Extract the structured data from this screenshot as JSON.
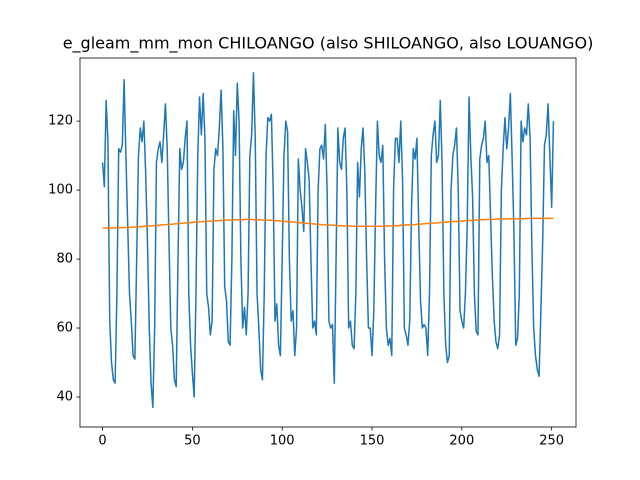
{
  "chart_data": {
    "type": "line",
    "title": "e_gleam_mm_mon CHILOANGO (also SHILOANGO, also LOUANGO)",
    "x": [
      0,
      1,
      2,
      3,
      4,
      5,
      6,
      7,
      8,
      9,
      10,
      11,
      12,
      13,
      14,
      15,
      16,
      17,
      18,
      19,
      20,
      21,
      22,
      23,
      24,
      25,
      26,
      27,
      28,
      29,
      30,
      31,
      32,
      33,
      34,
      35,
      36,
      37,
      38,
      39,
      40,
      41,
      42,
      43,
      44,
      45,
      46,
      47,
      48,
      49,
      50,
      51,
      52,
      53,
      54,
      55,
      56,
      57,
      58,
      59,
      60,
      61,
      62,
      63,
      64,
      65,
      66,
      67,
      68,
      69,
      70,
      71,
      72,
      73,
      74,
      75,
      76,
      77,
      78,
      79,
      80,
      81,
      82,
      83,
      84,
      85,
      86,
      87,
      88,
      89,
      90,
      91,
      92,
      93,
      94,
      95,
      96,
      97,
      98,
      99,
      100,
      101,
      102,
      103,
      104,
      105,
      106,
      107,
      108,
      109,
      110,
      111,
      112,
      113,
      114,
      115,
      116,
      117,
      118,
      119,
      120,
      121,
      122,
      123,
      124,
      125,
      126,
      127,
      128,
      129,
      130,
      131,
      132,
      133,
      134,
      135,
      136,
      137,
      138,
      139,
      140,
      141,
      142,
      143,
      144,
      145,
      146,
      147,
      148,
      149,
      150,
      151,
      152,
      153,
      154,
      155,
      156,
      157,
      158,
      159,
      160,
      161,
      162,
      163,
      164,
      165,
      166,
      167,
      168,
      169,
      170,
      171,
      172,
      173,
      174,
      175,
      176,
      177,
      178,
      179,
      180,
      181,
      182,
      183,
      184,
      185,
      186,
      187,
      188,
      189,
      190,
      191,
      192,
      193,
      194,
      195,
      196,
      197,
      198,
      199,
      200,
      201,
      202,
      203,
      204,
      205,
      206,
      207,
      208,
      209,
      210,
      211,
      212,
      213,
      214,
      215,
      216,
      217,
      218,
      219,
      220,
      221,
      222,
      223,
      224,
      225,
      226,
      227,
      228,
      229,
      230,
      231,
      232,
      233,
      234,
      235,
      236,
      237,
      238,
      239,
      240,
      241,
      242,
      243,
      244,
      245,
      246,
      247,
      248,
      249,
      250,
      251
    ],
    "series": [
      {
        "color": "#1f77b4",
        "values": [
          108,
          101,
          126,
          114,
          62,
          50,
          45,
          44,
          70,
          112,
          111,
          113,
          132,
          110,
          90,
          70,
          62,
          52,
          51,
          80,
          110,
          118,
          114,
          120,
          105,
          85,
          60,
          44,
          37,
          60,
          108,
          112,
          114,
          108,
          116,
          125,
          112,
          85,
          60,
          55,
          45,
          43,
          80,
          112,
          106,
          108,
          115,
          120,
          70,
          55,
          47,
          40,
          70,
          110,
          127,
          116,
          128,
          115,
          70,
          66,
          58,
          62,
          106,
          112,
          110,
          118,
          129,
          112,
          72,
          68,
          56,
          55,
          80,
          123,
          110,
          131,
          120,
          80,
          60,
          66,
          58,
          70,
          110,
          116,
          134,
          115,
          70,
          60,
          48,
          45,
          70,
          110,
          121,
          120,
          122,
          100,
          62,
          67,
          55,
          52,
          80,
          110,
          120,
          117,
          80,
          62,
          65,
          52,
          60,
          109,
          100,
          95,
          88,
          112,
          108,
          103,
          80,
          60,
          62,
          58,
          100,
          112,
          113,
          109,
          119,
          100,
          62,
          60,
          61,
          44,
          80,
          118,
          108,
          106,
          115,
          118,
          100,
          60,
          62,
          55,
          54,
          70,
          108,
          98,
          112,
          118,
          105,
          80,
          60,
          60,
          52,
          65,
          95,
          120,
          110,
          108,
          113,
          80,
          60,
          55,
          57,
          52,
          100,
          115,
          115,
          108,
          120,
          103,
          60,
          58,
          55,
          62,
          95,
          112,
          109,
          115,
          90,
          68,
          60,
          61,
          60,
          52,
          70,
          110,
          116,
          120,
          108,
          110,
          126,
          108,
          70,
          55,
          50,
          52,
          100,
          110,
          113,
          118,
          100,
          65,
          62,
          60,
          70,
          90,
          127,
          110,
          98,
          70,
          59,
          58,
          109,
          113,
          115,
          120,
          108,
          110,
          92,
          75,
          62,
          56,
          54,
          58,
          100,
          112,
          121,
          112,
          118,
          128,
          109,
          88,
          55,
          57,
          70,
          120,
          114,
          118,
          116,
          125,
          115,
          83,
          60,
          52,
          48,
          46,
          65,
          85,
          113,
          116,
          125,
          110,
          95,
          120
        ]
      },
      {
        "color": "#ff7f0e",
        "values": [
          89.0,
          89.0,
          89.0,
          89.0,
          89.0,
          89.0,
          89.0,
          89.0,
          89.1,
          89.1,
          89.1,
          89.1,
          89.1,
          89.2,
          89.2,
          89.2,
          89.2,
          89.3,
          89.3,
          89.3,
          89.4,
          89.4,
          89.4,
          89.5,
          89.5,
          89.5,
          89.6,
          89.6,
          89.7,
          89.7,
          89.7,
          89.8,
          89.8,
          89.9,
          89.9,
          90.0,
          90.0,
          90.1,
          90.1,
          90.1,
          90.2,
          90.2,
          90.3,
          90.3,
          90.4,
          90.4,
          90.5,
          90.5,
          90.5,
          90.6,
          90.6,
          90.7,
          90.7,
          90.7,
          90.8,
          90.8,
          90.9,
          90.9,
          90.9,
          91.0,
          91.0,
          91.0,
          91.1,
          91.1,
          91.1,
          91.2,
          91.2,
          91.2,
          91.2,
          91.3,
          91.3,
          91.3,
          91.3,
          91.4,
          91.4,
          91.4,
          91.4,
          91.4,
          91.4,
          91.5,
          91.5,
          91.5,
          91.5,
          91.5,
          91.4,
          91.4,
          91.4,
          91.4,
          91.4,
          91.3,
          91.3,
          91.3,
          91.3,
          91.2,
          91.2,
          91.2,
          91.1,
          91.1,
          91.1,
          91.0,
          91.0,
          90.9,
          90.9,
          90.9,
          90.8,
          90.8,
          90.7,
          90.7,
          90.6,
          90.6,
          90.5,
          90.5,
          90.4,
          90.4,
          90.3,
          90.3,
          90.3,
          90.2,
          90.2,
          90.1,
          90.1,
          90.0,
          90.0,
          90.0,
          89.9,
          89.9,
          89.9,
          89.8,
          89.8,
          89.8,
          89.7,
          89.7,
          89.7,
          89.7,
          89.6,
          89.6,
          89.6,
          89.6,
          89.6,
          89.5,
          89.5,
          89.5,
          89.5,
          89.5,
          89.5,
          89.5,
          89.5,
          89.5,
          89.5,
          89.5,
          89.5,
          89.5,
          89.5,
          89.5,
          89.5,
          89.5,
          89.5,
          89.6,
          89.6,
          89.6,
          89.6,
          89.6,
          89.7,
          89.7,
          89.7,
          89.7,
          89.8,
          89.8,
          89.8,
          89.9,
          89.9,
          89.9,
          90.0,
          90.0,
          90.0,
          90.1,
          90.1,
          90.1,
          90.2,
          90.2,
          90.3,
          90.3,
          90.3,
          90.4,
          90.4,
          90.5,
          90.5,
          90.5,
          90.6,
          90.6,
          90.7,
          90.7,
          90.7,
          90.8,
          90.8,
          90.9,
          90.9,
          90.9,
          91.0,
          91.0,
          91.0,
          91.1,
          91.1,
          91.1,
          91.2,
          91.2,
          91.2,
          91.3,
          91.3,
          91.3,
          91.4,
          91.4,
          91.4,
          91.4,
          91.5,
          91.5,
          91.5,
          91.5,
          91.5,
          91.6,
          91.6,
          91.6,
          91.6,
          91.6,
          91.6,
          91.7,
          91.7,
          91.7,
          91.7,
          91.7,
          91.7,
          91.7,
          91.7,
          91.7,
          91.7,
          91.7,
          91.8,
          91.8,
          91.8,
          91.8,
          91.8,
          91.8,
          91.8,
          91.8,
          91.8,
          91.8,
          91.8,
          91.8,
          91.8,
          91.8,
          91.8,
          91.8
        ]
      }
    ],
    "xlim": [
      -12.55,
      263.55
    ],
    "xticks": [
      0,
      50,
      100,
      150,
      200,
      250
    ],
    "ylim": [
      31.3,
      138.3
    ],
    "yticks": [
      40,
      60,
      80,
      100,
      120
    ]
  }
}
